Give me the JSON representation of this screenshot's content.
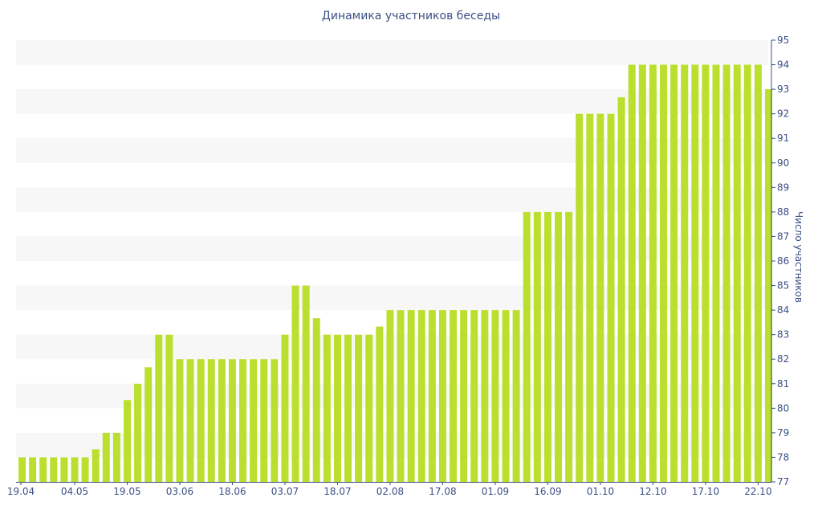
{
  "chart_data": {
    "type": "bar",
    "title": "Динамика участников беседы",
    "xlabel": "",
    "ylabel": "Число участников",
    "ylim": [
      77,
      95
    ],
    "yticks": [
      77,
      78,
      79,
      80,
      81,
      82,
      83,
      84,
      85,
      86,
      87,
      88,
      89,
      90,
      91,
      92,
      93,
      94,
      95
    ],
    "y_axis_side": "right",
    "grid": "alternating horizontal bands",
    "bar_color": "#bbdf2f",
    "band_color": "#f7f7f7",
    "text_color": "#3b4f86",
    "x_tick_labels": [
      "19.04",
      "04.05",
      "19.05",
      "03.06",
      "18.06",
      "03.07",
      "18.07",
      "02.08",
      "17.08",
      "01.09",
      "16.09",
      "01.10",
      "12.10",
      "17.10",
      "22.10"
    ],
    "x_tick_positions": [
      0,
      5,
      10,
      15,
      20,
      25,
      30,
      35,
      40,
      45,
      50,
      55,
      60,
      65,
      70
    ],
    "values": [
      78,
      78,
      78,
      78,
      78,
      78,
      78,
      78.33,
      79,
      79,
      80.33,
      81,
      81.67,
      83,
      83,
      82,
      82,
      82,
      82,
      82,
      82,
      82,
      82,
      82,
      82,
      83,
      85,
      85,
      83.67,
      83,
      83,
      83,
      83,
      83,
      83.33,
      84,
      84,
      84,
      84,
      84,
      84,
      84,
      84,
      84,
      84,
      84,
      84,
      84,
      88,
      88,
      88,
      88,
      88,
      92,
      92,
      92,
      92,
      92.67,
      94,
      94,
      94,
      94,
      94,
      94,
      94,
      94,
      94,
      94,
      94,
      94,
      94,
      93
    ]
  }
}
